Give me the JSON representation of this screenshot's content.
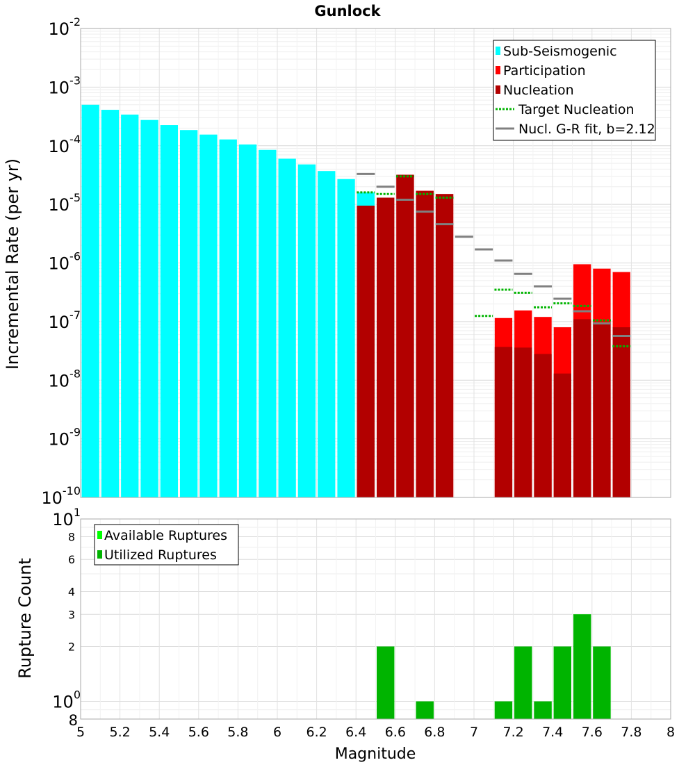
{
  "chart_data": [
    {
      "type": "bar",
      "title": "Gunlock",
      "xlabel": "",
      "ylabel": "Incremental Rate (per yr)",
      "yscale": "log",
      "xlim": [
        5,
        8
      ],
      "ylim": [
        1e-10,
        0.01
      ],
      "grid": true,
      "legend_position": "top-right",
      "y_tick_labels": [
        {
          "base": "10",
          "exp": "-2",
          "value": 0.01
        },
        {
          "base": "10",
          "exp": "-3",
          "value": 0.001
        },
        {
          "base": "10",
          "exp": "-4",
          "value": 0.0001
        },
        {
          "base": "10",
          "exp": "-5",
          "value": 1e-05
        },
        {
          "base": "10",
          "exp": "-6",
          "value": 1e-06
        },
        {
          "base": "10",
          "exp": "-7",
          "value": 1e-07
        },
        {
          "base": "10",
          "exp": "-8",
          "value": 1e-08
        },
        {
          "base": "10",
          "exp": "-9",
          "value": 1e-09
        },
        {
          "base": "10",
          "exp": "-10",
          "value": 1e-10
        }
      ],
      "legend": [
        {
          "label": "Sub-Seismogenic",
          "symbol": "bar",
          "color": "#00ffff"
        },
        {
          "label": "Participation",
          "symbol": "bar",
          "color": "#ff0000"
        },
        {
          "label": "Nucleation",
          "symbol": "bar",
          "color": "#b20000"
        },
        {
          "label": "Target Nucleation",
          "symbol": "dotted",
          "color": "#00b400"
        },
        {
          "label": "Nucl. G-R fit, b=2.12",
          "symbol": "line",
          "color": "#808080"
        }
      ],
      "series": [
        {
          "name": "Sub-Seismogenic",
          "color": "#00ffff",
          "x": [
            5.05,
            5.15,
            5.25,
            5.35,
            5.45,
            5.55,
            5.65,
            5.75,
            5.85,
            5.95,
            6.05,
            6.15,
            6.25,
            6.35,
            6.45
          ],
          "values": [
            0.0005,
            0.00041,
            0.00034,
            0.000275,
            0.000225,
            0.000185,
            0.000155,
            0.000128,
            0.000105,
            8.5e-05,
            6e-05,
            4.8e-05,
            3.7e-05,
            2.7e-05,
            1.6e-05
          ]
        },
        {
          "name": "Participation",
          "color": "#ff0000",
          "x": [
            6.45,
            6.55,
            6.65,
            6.75,
            6.85,
            7.15,
            7.25,
            7.35,
            7.45,
            7.55,
            7.65,
            7.75
          ],
          "values": [
            9.5e-06,
            1.3e-05,
            3.2e-05,
            1.7e-05,
            1.5e-05,
            1.15e-07,
            1.55e-07,
            1.2e-07,
            8e-08,
            9.5e-07,
            8e-07,
            7e-07
          ]
        },
        {
          "name": "Nucleation",
          "color": "#b20000",
          "x": [
            6.45,
            6.55,
            6.65,
            6.75,
            6.85,
            7.15,
            7.25,
            7.35,
            7.45,
            7.55,
            7.65,
            7.75
          ],
          "values": [
            9.5e-06,
            1.3e-05,
            3.2e-05,
            1.7e-05,
            1.5e-05,
            3.7e-08,
            3.6e-08,
            2.8e-08,
            1.3e-08,
            1.1e-07,
            9.5e-08,
            8e-08
          ]
        },
        {
          "name": "Target Nucleation",
          "color": "#00b400",
          "x": [
            6.45,
            6.55,
            6.65,
            6.75,
            6.85,
            7.05,
            7.15,
            7.25,
            7.35,
            7.45,
            7.55,
            7.65,
            7.75
          ],
          "values": [
            1.6e-05,
            1.5e-05,
            3e-05,
            1.5e-05,
            1.3e-05,
            1.25e-07,
            3.5e-07,
            3.1e-07,
            1.75e-07,
            2.05e-07,
            1.85e-07,
            1.05e-07,
            3.8e-08
          ]
        },
        {
          "name": "Nucl. G-R fit, b=2.12",
          "color": "#808080",
          "x": [
            6.45,
            6.55,
            6.65,
            6.75,
            6.85,
            6.95,
            7.05,
            7.15,
            7.25,
            7.35,
            7.45,
            7.55,
            7.65,
            7.75
          ],
          "values": [
            3.3e-05,
            2e-05,
            1.2e-05,
            7.5e-06,
            4.6e-06,
            2.8e-06,
            1.7e-06,
            1.1e-06,
            6.5e-07,
            4e-07,
            2.45e-07,
            1.5e-07,
            9.3e-08,
            5.7e-08
          ]
        }
      ]
    },
    {
      "type": "bar",
      "title": "",
      "xlabel": "Magnitude",
      "ylabel": "Rupture Count",
      "yscale": "log",
      "xlim": [
        5,
        8
      ],
      "ylim": [
        0.8,
        10
      ],
      "grid": true,
      "legend_position": "top-left",
      "x_tick_labels": [
        "5",
        "5.2",
        "5.4",
        "5.6",
        "5.8",
        "6",
        "6.2",
        "6.4",
        "6.6",
        "6.8",
        "7",
        "7.2",
        "7.4",
        "7.6",
        "7.8",
        "8"
      ],
      "y_tick_labels": [
        {
          "base": "10",
          "exp": "1",
          "value": 10
        },
        {
          "base": "8",
          "exp": "",
          "value": 8
        },
        {
          "base": "6",
          "exp": "",
          "value": 6
        },
        {
          "base": "4",
          "exp": "",
          "value": 4
        },
        {
          "base": "3",
          "exp": "",
          "value": 3
        },
        {
          "base": "2",
          "exp": "",
          "value": 2
        },
        {
          "base": "10",
          "exp": "0",
          "value": 1
        },
        {
          "base": "8",
          "exp": "",
          "value": 0.8
        }
      ],
      "legend": [
        {
          "label": "Available Ruptures",
          "symbol": "bar",
          "color": "#00ff00"
        },
        {
          "label": "Utilized Ruptures",
          "symbol": "bar",
          "color": "#00b400"
        }
      ],
      "series": [
        {
          "name": "Available Ruptures",
          "color": "#00ff00",
          "x": [
            6.55,
            6.75,
            7.15,
            7.25,
            7.35,
            7.45,
            7.55,
            7.65
          ],
          "values": [
            2,
            1,
            1,
            2,
            1,
            2,
            3,
            2
          ]
        },
        {
          "name": "Utilized Ruptures",
          "color": "#00b400",
          "x": [
            6.55,
            6.75,
            7.15,
            7.25,
            7.35,
            7.45,
            7.55,
            7.65
          ],
          "values": [
            2,
            1,
            1,
            2,
            1,
            2,
            3,
            2
          ]
        }
      ]
    }
  ]
}
